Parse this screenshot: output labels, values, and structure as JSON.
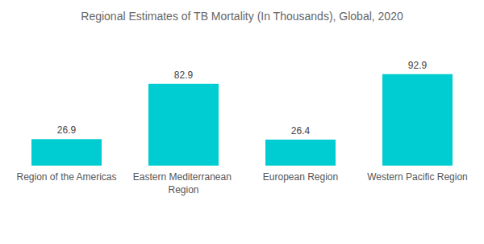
{
  "chart_data": {
    "type": "bar",
    "title": "Regional Estimates of TB Mortality (In Thousands), Global, 2020",
    "categories": [
      "Region of the Americas",
      "Eastern Mediterranean Region",
      "European Region",
      "Western Pacific Region"
    ],
    "values": [
      26.9,
      82.9,
      26.4,
      92.9
    ],
    "color": "#00cdd2",
    "ylim": [
      0,
      100
    ],
    "grid": false,
    "data_labels": true,
    "tick_labels": "x"
  }
}
